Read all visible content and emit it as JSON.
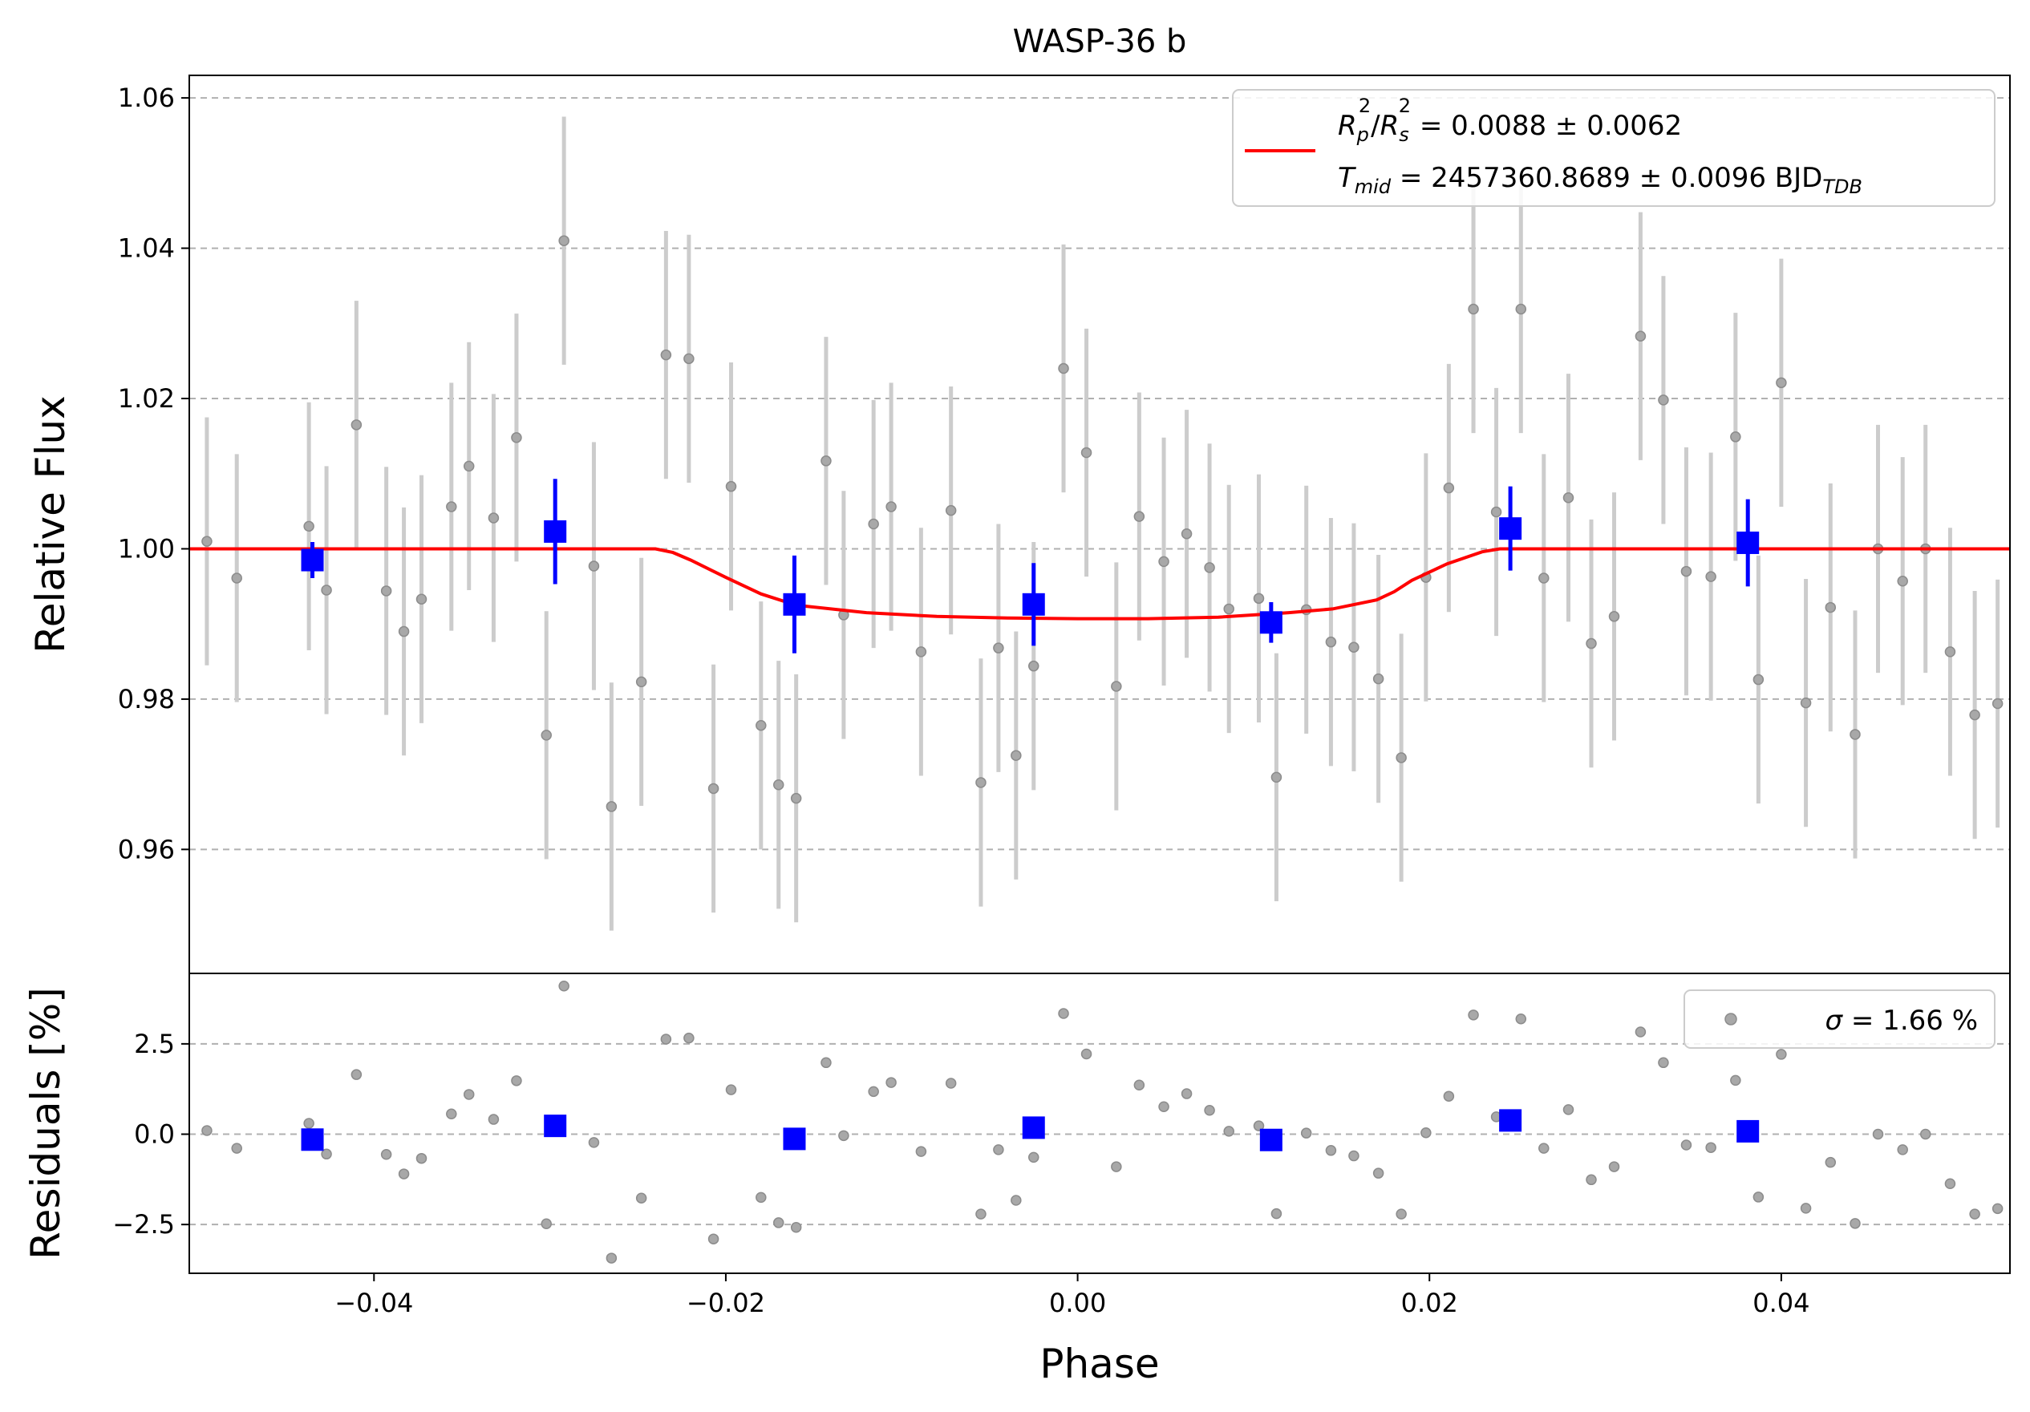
{
  "chart_data": [
    {
      "type": "scatter",
      "panel": "light-curve",
      "title": "WASP-36 b",
      "xlabel": "",
      "ylabel": "Relative Flux",
      "xlim": [
        -0.0505,
        0.053
      ],
      "ylim": [
        0.9435,
        1.063
      ],
      "grid": "y-dashed",
      "yticks": [
        0.96,
        0.98,
        1.0,
        1.02,
        1.04,
        1.06
      ],
      "ytick_labels": [
        "0.96",
        "0.98",
        "1.00",
        "1.02",
        "1.04",
        "1.06"
      ],
      "legend_position": "upper-right",
      "legend_line_color": "#ff0000",
      "legend": {
        "rp_rs": {
          "frac_num": "R",
          "num_sub": "p",
          "num_sup": "2",
          "frac_den": "R",
          "den_sub": "s",
          "den_sup": "2",
          "value": " = 0.0088 ± 0.0062"
        },
        "tmid": {
          "name": "T",
          "name_sub": "mid",
          "value": " = 2457360.8689 ± 0.0096 BJD",
          "value_sub": "TDB"
        }
      },
      "colors": {
        "raw": "#a8a8a8",
        "raw_err": "#cccccc",
        "binned": "#0000ff",
        "model": "#ff0000"
      },
      "raw_points": {
        "x": [
          -0.0495,
          -0.0478,
          -0.0437,
          -0.0427,
          -0.041,
          -0.0393,
          -0.0383,
          -0.0373,
          -0.0356,
          -0.0346,
          -0.0332,
          -0.0319,
          -0.0302,
          -0.0292,
          -0.0275,
          -0.0265,
          -0.0248,
          -0.0234,
          -0.0221,
          -0.0207,
          -0.0197,
          -0.018,
          -0.017,
          -0.016,
          -0.0143,
          -0.0133,
          -0.0116,
          -0.0106,
          -0.0089,
          -0.0072,
          -0.0055,
          -0.0045,
          -0.0035,
          -0.0025,
          -0.0008,
          0.0005,
          0.0022,
          0.0035,
          0.0049,
          0.0062,
          0.0075,
          0.0086,
          0.0103,
          0.0113,
          0.013,
          0.0144,
          0.0157,
          0.0171,
          0.0184,
          0.0198,
          0.0211,
          0.0225,
          0.0238,
          0.0252,
          0.0265,
          0.0279,
          0.0292,
          0.0305,
          0.032,
          0.0333,
          0.0346,
          0.036,
          0.0374,
          0.0387,
          0.04,
          0.0414,
          0.0428,
          0.0442,
          0.0455,
          0.0469,
          0.0482,
          0.0496,
          0.051,
          0.0523
        ],
        "y": [
          1.001,
          0.9961,
          1.003,
          0.9945,
          1.0165,
          0.9944,
          0.989,
          0.9933,
          1.0056,
          1.011,
          1.0041,
          1.0148,
          0.9752,
          1.041,
          0.9977,
          0.9657,
          0.9823,
          1.0258,
          1.0253,
          0.9681,
          1.0083,
          0.9765,
          0.9686,
          0.9668,
          1.0117,
          0.9912,
          1.0033,
          1.0056,
          0.9863,
          1.0051,
          0.9689,
          0.9868,
          0.9725,
          0.9844,
          1.024,
          1.0128,
          0.9817,
          1.0043,
          0.9983,
          1.002,
          0.9975,
          0.992,
          0.9934,
          0.9696,
          0.9919,
          0.9876,
          0.9869,
          0.9827,
          0.9722,
          0.9962,
          1.0081,
          1.0319,
          1.0049,
          1.0319,
          0.9961,
          1.0068,
          0.9874,
          0.991,
          1.0283,
          1.0198,
          0.997,
          0.9963,
          1.0149,
          0.9826,
          1.0221,
          0.9795,
          0.9922,
          0.9753,
          1.0,
          0.9957,
          1.0,
          0.9863,
          0.9779,
          0.9794
        ],
        "err": 0.0165
      },
      "binned_points": {
        "x": [
          -0.0435,
          -0.0297,
          -0.0161,
          -0.0025,
          0.011,
          0.0246,
          0.0381
        ],
        "y": [
          0.9985,
          1.0023,
          0.9926,
          0.9926,
          0.9902,
          1.0027,
          1.0008
        ],
        "err": [
          0.0024,
          0.007,
          0.0065,
          0.0055,
          0.0027,
          0.0056,
          0.0058
        ]
      },
      "model": {
        "name": "",
        "x": [
          -0.0505,
          -0.024,
          -0.023,
          -0.022,
          -0.02,
          -0.018,
          -0.016,
          -0.012,
          -0.008,
          -0.004,
          0.0,
          0.004,
          0.008,
          0.012,
          0.0145,
          0.017,
          0.018,
          0.019,
          0.021,
          0.023,
          0.024,
          0.053
        ],
        "y": [
          1.0,
          1.0,
          0.9995,
          0.9985,
          0.9962,
          0.994,
          0.9925,
          0.9915,
          0.991,
          0.9908,
          0.9907,
          0.9907,
          0.9909,
          0.9915,
          0.992,
          0.9932,
          0.9943,
          0.9958,
          0.998,
          0.9996,
          1.0,
          1.0
        ]
      }
    },
    {
      "type": "scatter",
      "panel": "residuals",
      "xlabel": "Phase",
      "ylabel": "Residuals [%]",
      "xlim": [
        -0.0505,
        0.053
      ],
      "ylim": [
        -3.85,
        4.45
      ],
      "grid": "y-dashed",
      "yticks": [
        -2.5,
        0.0,
        2.5
      ],
      "ytick_labels": [
        "−2.5",
        "0.0",
        "2.5"
      ],
      "xticks": [
        -0.04,
        -0.02,
        0.0,
        0.02,
        0.04
      ],
      "xtick_labels": [
        "−0.04",
        "−0.02",
        "0.00",
        "0.02",
        "0.04"
      ],
      "legend_position": "upper-right",
      "legend": {
        "sigma_symbol": "σ",
        "sigma_value": " = 1.66 %"
      },
      "raw_points": {
        "x": [
          -0.0495,
          -0.0478,
          -0.0437,
          -0.0427,
          -0.041,
          -0.0393,
          -0.0383,
          -0.0373,
          -0.0356,
          -0.0346,
          -0.0332,
          -0.0319,
          -0.0302,
          -0.0292,
          -0.0275,
          -0.0265,
          -0.0248,
          -0.0234,
          -0.0221,
          -0.0207,
          -0.0197,
          -0.018,
          -0.017,
          -0.016,
          -0.0143,
          -0.0133,
          -0.0116,
          -0.0106,
          -0.0089,
          -0.0072,
          -0.0055,
          -0.0045,
          -0.0035,
          -0.0025,
          -0.0008,
          0.0005,
          0.0022,
          0.0035,
          0.0049,
          0.0062,
          0.0075,
          0.0086,
          0.0103,
          0.0113,
          0.013,
          0.0144,
          0.0157,
          0.0171,
          0.0184,
          0.0198,
          0.0211,
          0.0225,
          0.0238,
          0.0252,
          0.0265,
          0.0279,
          0.0292,
          0.0305,
          0.032,
          0.0333,
          0.0346,
          0.036,
          0.0374,
          0.0387,
          0.04,
          0.0414,
          0.0428,
          0.0442,
          0.0455,
          0.0469,
          0.0482,
          0.0496,
          0.051,
          0.0523
        ],
        "y": [
          0.1,
          -0.39,
          0.3,
          -0.55,
          1.65,
          -0.56,
          -1.1,
          -0.67,
          0.56,
          1.1,
          0.41,
          1.48,
          -2.48,
          4.1,
          -0.23,
          -3.43,
          -1.77,
          2.63,
          2.66,
          -2.9,
          1.23,
          -1.75,
          -2.45,
          -2.58,
          1.98,
          -0.04,
          1.18,
          1.43,
          -0.48,
          1.41,
          -2.21,
          -0.43,
          -1.83,
          -0.64,
          3.34,
          2.22,
          -0.9,
          1.36,
          0.76,
          1.12,
          0.66,
          0.08,
          0.23,
          -2.2,
          0.03,
          -0.45,
          -0.6,
          -1.08,
          -2.21,
          0.04,
          1.05,
          3.3,
          0.48,
          3.19,
          -0.39,
          0.68,
          -1.26,
          -0.9,
          2.83,
          1.98,
          -0.3,
          -0.37,
          1.49,
          -1.74,
          2.21,
          -2.05,
          -0.78,
          -2.47,
          0.0,
          -0.43,
          0.0,
          -1.37,
          -2.21,
          -2.06
        ]
      },
      "binned_points": {
        "x": [
          -0.0435,
          -0.0297,
          -0.0161,
          -0.0025,
          0.011,
          0.0246,
          0.0381
        ],
        "y": [
          -0.15,
          0.23,
          -0.13,
          0.18,
          -0.16,
          0.38,
          0.08
        ]
      }
    }
  ]
}
